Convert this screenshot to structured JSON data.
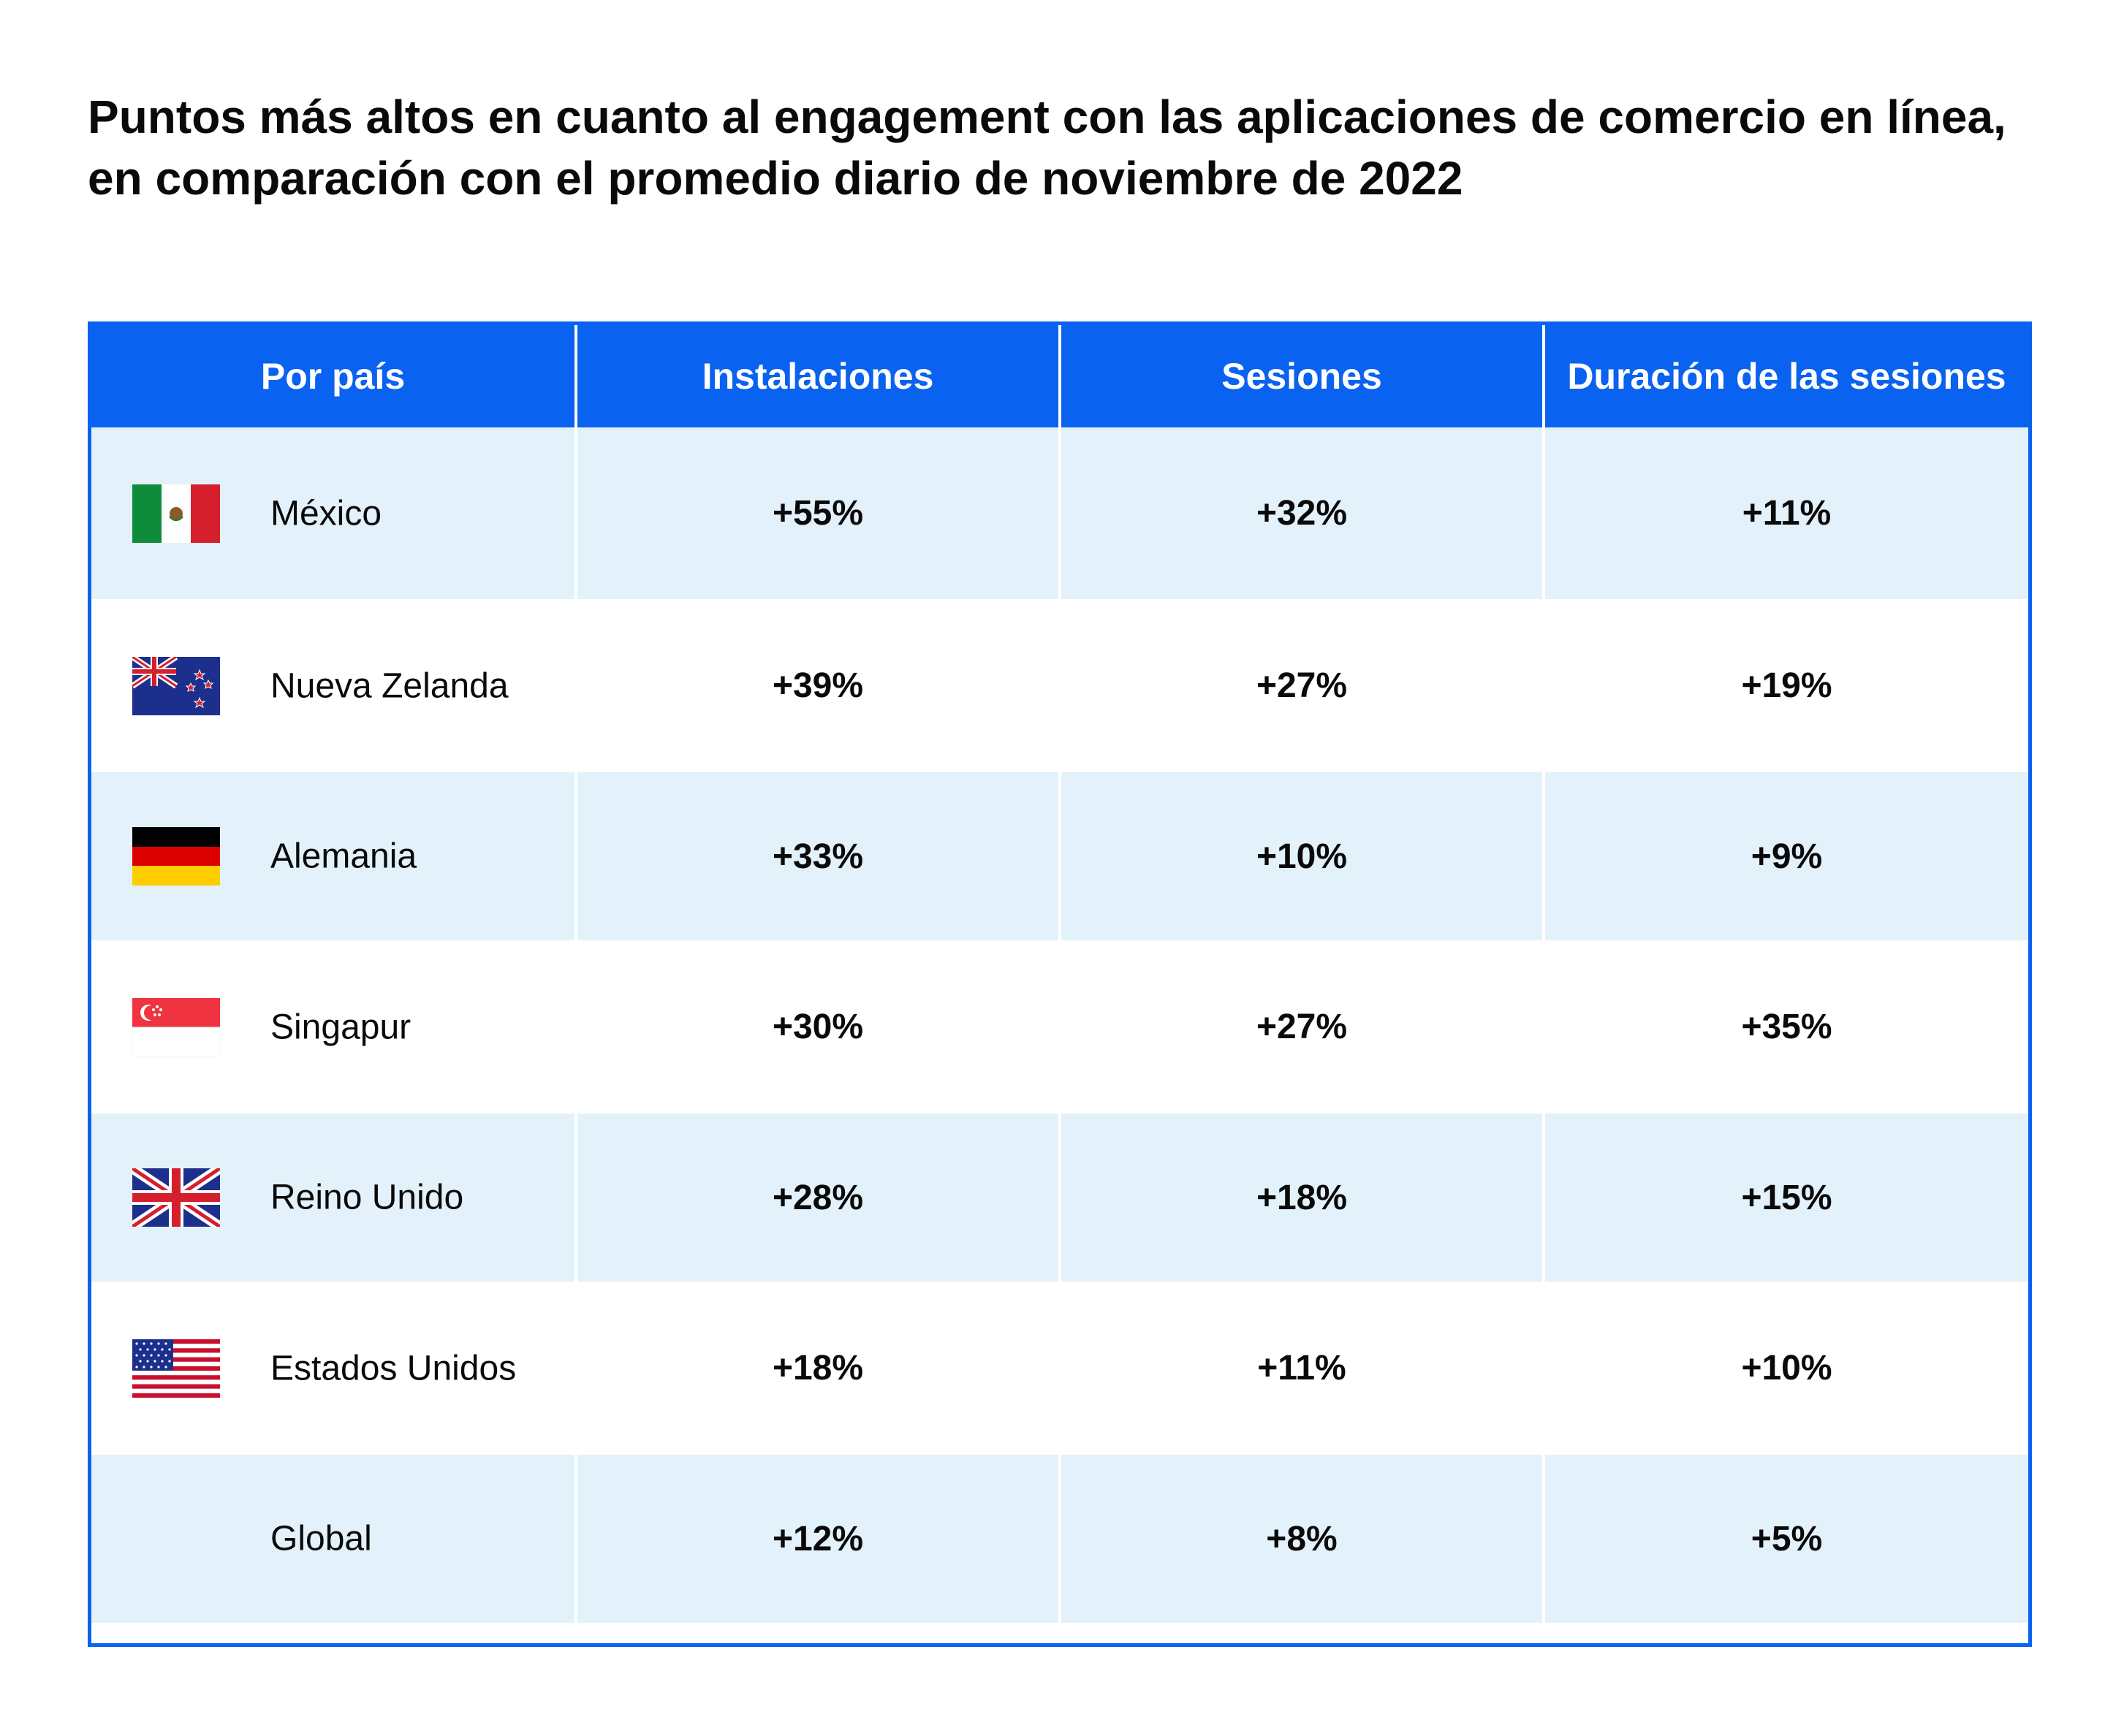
{
  "chart_data": {
    "type": "table",
    "title": "Puntos más altos en cuanto al engagement con las aplicaciones de comercio en línea, en comparación con el promedio diario de noviembre de 2022",
    "columns": [
      "Por país",
      "Instalaciones",
      "Sesiones",
      "Duración de las sesiones"
    ],
    "rows": [
      {
        "country": "México",
        "flag": "mexico-flag-icon",
        "instalaciones": "+55%",
        "sesiones": "+32%",
        "duracion": "+11%"
      },
      {
        "country": "Nueva Zelanda",
        "flag": "new-zealand-flag-icon",
        "instalaciones": "+39%",
        "sesiones": "+27%",
        "duracion": "+19%"
      },
      {
        "country": "Alemania",
        "flag": "germany-flag-icon",
        "instalaciones": "+33%",
        "sesiones": "+10%",
        "duracion": "+9%"
      },
      {
        "country": "Singapur",
        "flag": "singapore-flag-icon",
        "instalaciones": "+30%",
        "sesiones": "+27%",
        "duracion": "+35%"
      },
      {
        "country": "Reino Unido",
        "flag": "uk-flag-icon",
        "instalaciones": "+28%",
        "sesiones": "+18%",
        "duracion": "+15%"
      },
      {
        "country": "Estados Unidos",
        "flag": "usa-flag-icon",
        "instalaciones": "+18%",
        "sesiones": "+11%",
        "duracion": "+10%"
      },
      {
        "country": "Global",
        "flag": "",
        "instalaciones": "+12%",
        "sesiones": "+8%",
        "duracion": "+5%"
      }
    ]
  },
  "colors": {
    "header_bg": "#0a62f0",
    "row_alt_bg": "#e3f1fa",
    "row_bg": "#ffffff"
  }
}
